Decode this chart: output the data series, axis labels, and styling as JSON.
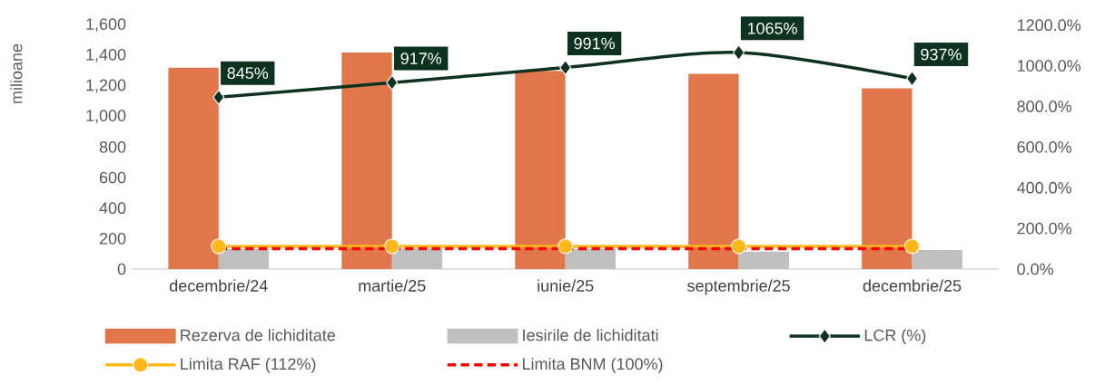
{
  "chart_data": {
    "type": "bar",
    "ylabel": "milioane",
    "legend": "bottom",
    "categories": [
      "decembrie/24",
      "martie/25",
      "iunie/25",
      "septembrie/25",
      "decembrie/25"
    ],
    "ylim": [
      0,
      1600
    ],
    "yticks": [
      {
        "value": 0,
        "label": "0"
      },
      {
        "value": 200,
        "label": "200"
      },
      {
        "value": 400,
        "label": "400"
      },
      {
        "value": 600,
        "label": "600"
      },
      {
        "value": 800,
        "label": "800"
      },
      {
        "value": 1000,
        "label": "1,000"
      },
      {
        "value": 1200,
        "label": "1,200"
      },
      {
        "value": 1400,
        "label": "1,400"
      },
      {
        "value": 1600,
        "label": "1,600"
      }
    ],
    "y2lim": [
      0,
      1200
    ],
    "y2ticks": [
      {
        "value": 0,
        "label": "0.0%"
      },
      {
        "value": 200,
        "label": "200.0%"
      },
      {
        "value": 400,
        "label": "400.0%"
      },
      {
        "value": 600,
        "label": "600.0%"
      },
      {
        "value": 800,
        "label": "800.0%"
      },
      {
        "value": 1000,
        "label": "1000.0%"
      },
      {
        "value": 1200,
        "label": "1200.0%"
      }
    ],
    "series": [
      {
        "name": "Rezerva de lichiditate",
        "color": "#e07649",
        "values": [
          1320,
          1420,
          1300,
          1280,
          1185
        ]
      },
      {
        "name": "Iesirile de lichiditati",
        "color": "#bfbfbf",
        "values": [
          130,
          135,
          130,
          115,
          125
        ]
      },
      {
        "name": "LCR (%)",
        "type": "line",
        "axis": "y2",
        "color": "#0d3320",
        "marker": "diamond",
        "line_style": "solid",
        "values": [
          845,
          917,
          991,
          1065,
          937
        ],
        "value_labels": [
          "845%",
          "917%",
          "991%",
          "1065%",
          "937%"
        ]
      },
      {
        "name": "Limita RAF (112%)",
        "type": "line",
        "axis": "y2",
        "color": "#ffb81c",
        "marker": "circle",
        "line_style": "solid",
        "values": [
          112,
          112,
          112,
          112,
          112
        ]
      },
      {
        "name": "Limita BNM (100%)",
        "type": "line",
        "axis": "y2",
        "color": "#ff0000",
        "marker": "none",
        "line_style": "dashed",
        "values": [
          100,
          100,
          100,
          100,
          100
        ]
      }
    ]
  }
}
